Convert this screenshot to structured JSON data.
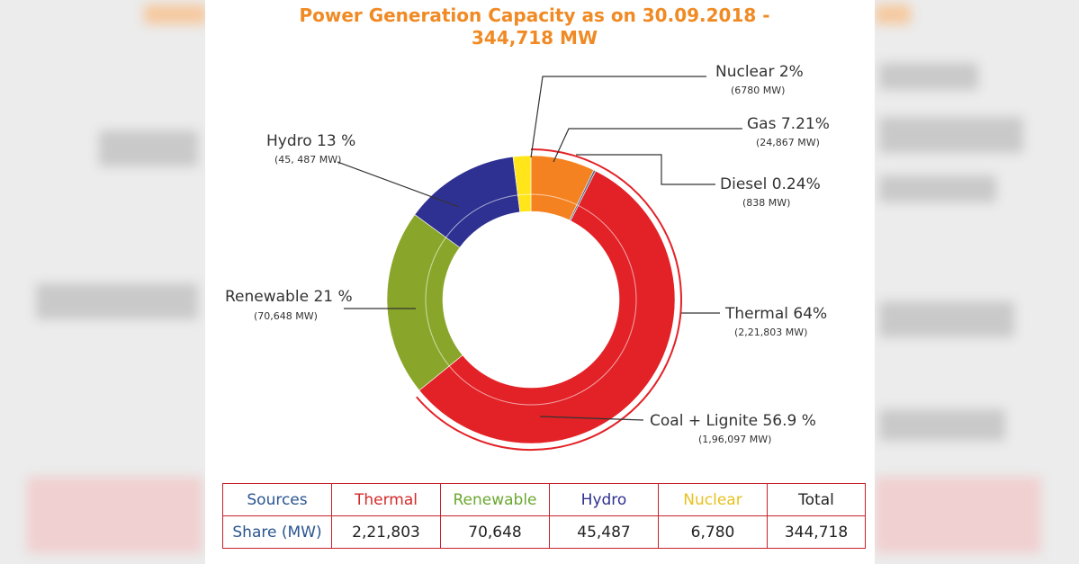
{
  "chart_data": {
    "type": "pie",
    "title_lines": [
      "Power Generation Capacity as on 30.09.2018 -",
      "344,718 MW"
    ],
    "labels": [
      "Gas 7.21%",
      "Diesel 0.24%",
      "Coal + Lignite 56.9 %",
      "Renewable 21 %",
      "Hydro 13 %",
      "Nuclear 2%"
    ],
    "values": [
      7.21,
      0.24,
      56.9,
      21,
      13,
      2
    ],
    "sublabels": [
      "(24,867 MW)",
      "(838 MW)",
      "(1,96,097 MW)",
      "(70,648 MW)",
      "(45, 487 MW)",
      "(6780 MW)"
    ],
    "colors": [
      "#f58220",
      "#5a6b8c",
      "#e32227",
      "#8aa62a",
      "#2e3192",
      "#ffe51a"
    ],
    "outer_ring": {
      "label": "Thermal 64%",
      "value": 64,
      "sublabel": "(2,21,803 MW)",
      "color": "#e32227"
    }
  },
  "table": {
    "rows": [
      [
        "Sources",
        "Thermal",
        "Renewable",
        "Hydro",
        "Nuclear",
        "Total"
      ],
      [
        "Share (MW)",
        "2,21,803",
        "70,648",
        "45,487",
        "6,780",
        "344,718"
      ]
    ]
  }
}
